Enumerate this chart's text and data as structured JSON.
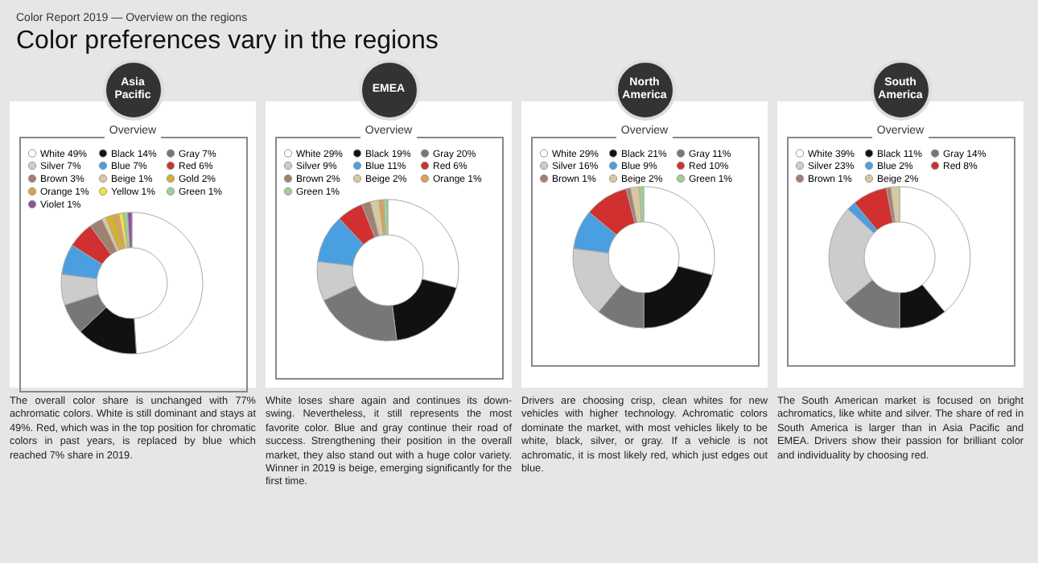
{
  "chart_data": [
    {
      "type": "other",
      "title": "Color preferences vary in the regions",
      "subtitle": "Color Report 2019 — Overview on the regions"
    },
    {
      "type": "donut",
      "title": "Asia Pacific",
      "subtitle": "Overview",
      "legend": "top",
      "categories": [
        "White",
        "Black",
        "Gray",
        "Silver",
        "Blue",
        "Red",
        "Brown",
        "Beige",
        "Gold",
        "Orange",
        "Yellow",
        "Green",
        "Violet"
      ],
      "values": [
        49,
        14,
        7,
        7,
        7,
        6,
        3,
        1,
        2,
        1,
        1,
        1,
        1
      ],
      "value_labels": [
        "49%",
        "14%",
        "7%",
        "7%",
        "7%",
        "6%",
        "3%",
        "1%",
        "2%",
        "1%",
        "1%",
        "1%",
        "1%"
      ],
      "colors": [
        "#ffffff",
        "#111111",
        "#777777",
        "#cccccc",
        "#4a9fe0",
        "#d03030",
        "#a08070",
        "#d8c8a0",
        "#d4b030",
        "#e0a050",
        "#f0e040",
        "#a0d090",
        "#9050a0"
      ],
      "annotations": [
        "The overall color share is unchanged with 77% achromatic colors. White is still dominant and stays at 49%. Red, which was in the top position for chromatic colors in past years, is replaced by blue which reached 7% share in 2019."
      ]
    },
    {
      "type": "donut",
      "title": "EMEA",
      "subtitle": "Overview",
      "legend": "top",
      "categories": [
        "White",
        "Black",
        "Gray",
        "Silver",
        "Blue",
        "Red",
        "Brown",
        "Beige",
        "Orange",
        "Green"
      ],
      "values": [
        29,
        19,
        20,
        9,
        11,
        6,
        2,
        2,
        1,
        1
      ],
      "value_labels": [
        "29%",
        "19%",
        "20%",
        "9%",
        "11%",
        "6%",
        "2%",
        "2%",
        "1%",
        "1%"
      ],
      "colors": [
        "#ffffff",
        "#111111",
        "#777777",
        "#cccccc",
        "#4a9fe0",
        "#d03030",
        "#a08070",
        "#d8c8a0",
        "#e0a050",
        "#a0d090"
      ],
      "annotations": [
        "White loses share again and continues its down-swing. Nevertheless, it still represents the most favorite color. Blue and gray continue their road of success. Strengthening their position in the overall market, they also stand out with a huge color variety. Winner in 2019 is beige, emerging significantly for the first time."
      ]
    },
    {
      "type": "donut",
      "title": "North America",
      "subtitle": "Overview",
      "legend": "top",
      "categories": [
        "White",
        "Black",
        "Gray",
        "Silver",
        "Blue",
        "Red",
        "Brown",
        "Beige",
        "Green"
      ],
      "values": [
        29,
        21,
        11,
        16,
        9,
        10,
        1,
        2,
        1
      ],
      "value_labels": [
        "29%",
        "21%",
        "11%",
        "16%",
        "9%",
        "10%",
        "1%",
        "2%",
        "1%"
      ],
      "colors": [
        "#ffffff",
        "#111111",
        "#777777",
        "#cccccc",
        "#4a9fe0",
        "#d03030",
        "#a08070",
        "#d8c8a0",
        "#a0d090"
      ],
      "annotations": [
        "Drivers are choosing crisp, clean whites for new vehicles with higher technology. Achromatic colors dominate the market, with most vehicles likely to be white, black, silver, or gray. If a vehicle is not achromatic, it is most likely red, which just edges out blue."
      ]
    },
    {
      "type": "donut",
      "title": "South America",
      "subtitle": "Overview",
      "legend": "top",
      "categories": [
        "White",
        "Black",
        "Gray",
        "Silver",
        "Blue",
        "Red",
        "Brown",
        "Beige"
      ],
      "values": [
        39,
        11,
        14,
        23,
        2,
        8,
        1,
        2
      ],
      "value_labels": [
        "39%",
        "11%",
        "14%",
        "23%",
        "2%",
        "8%",
        "1%",
        "2%"
      ],
      "colors": [
        "#ffffff",
        "#111111",
        "#777777",
        "#cccccc",
        "#4a9fe0",
        "#d03030",
        "#a08070",
        "#d8c8a0"
      ],
      "annotations": [
        "The South American market is focused on bright achromatics, like white and silver. The share of red in South America is larger than in Asia Pacific and EMEA. Drivers show their passion for brilliant color and individuality by choosing red."
      ]
    }
  ]
}
